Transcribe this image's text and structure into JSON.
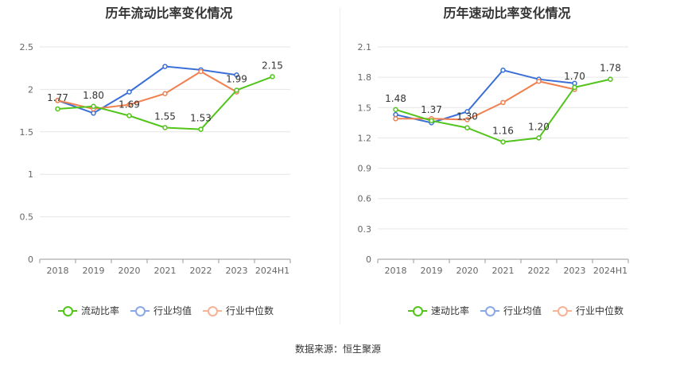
{
  "source_text": "数据来源：恒生聚源",
  "chart_data": [
    {
      "type": "line",
      "title": "历年流动比率变化情况",
      "categories": [
        "2018",
        "2019",
        "2020",
        "2021",
        "2022",
        "2023",
        "2024H1"
      ],
      "yticks": [
        "0",
        "0.5",
        "1",
        "1.5",
        "2",
        "2.5"
      ],
      "ylim": [
        0,
        2.5
      ],
      "grid": true,
      "legend_position": "bottom",
      "series": [
        {
          "name": "流动比率",
          "color": "#52c41a",
          "values": [
            1.77,
            1.8,
            1.69,
            1.55,
            1.53,
            1.99,
            2.15
          ],
          "labels": [
            "1.77",
            "1.80",
            "1.69",
            "1.55",
            "1.53",
            "1.99",
            "2.15"
          ]
        },
        {
          "name": "行业均值",
          "color": "#3a6fd8",
          "values": [
            1.87,
            1.72,
            1.97,
            2.27,
            2.23,
            2.17,
            null
          ]
        },
        {
          "name": "行业中位数",
          "color": "#f08050",
          "values": [
            1.87,
            1.77,
            1.82,
            1.95,
            2.21,
            1.97,
            null
          ]
        }
      ]
    },
    {
      "type": "line",
      "title": "历年速动比率变化情况",
      "categories": [
        "2018",
        "2019",
        "2020",
        "2021",
        "2022",
        "2023",
        "2024H1"
      ],
      "yticks": [
        "0",
        "0.3",
        "0.6",
        "0.9",
        "1.2",
        "1.5",
        "1.8",
        "2.1"
      ],
      "ylim": [
        0,
        2.1
      ],
      "grid": true,
      "legend_position": "bottom",
      "series": [
        {
          "name": "速动比率",
          "color": "#52c41a",
          "values": [
            1.48,
            1.37,
            1.3,
            1.16,
            1.2,
            1.7,
            1.78
          ],
          "labels": [
            "1.48",
            "1.37",
            "1.30",
            "1.16",
            "1.20",
            "1.70",
            "1.78"
          ]
        },
        {
          "name": "行业均值",
          "color": "#3a6fd8",
          "values": [
            1.43,
            1.35,
            1.46,
            1.87,
            1.78,
            1.74,
            null
          ]
        },
        {
          "name": "行业中位数",
          "color": "#f08050",
          "values": [
            1.39,
            1.39,
            1.38,
            1.55,
            1.76,
            1.68,
            null
          ]
        }
      ]
    }
  ]
}
